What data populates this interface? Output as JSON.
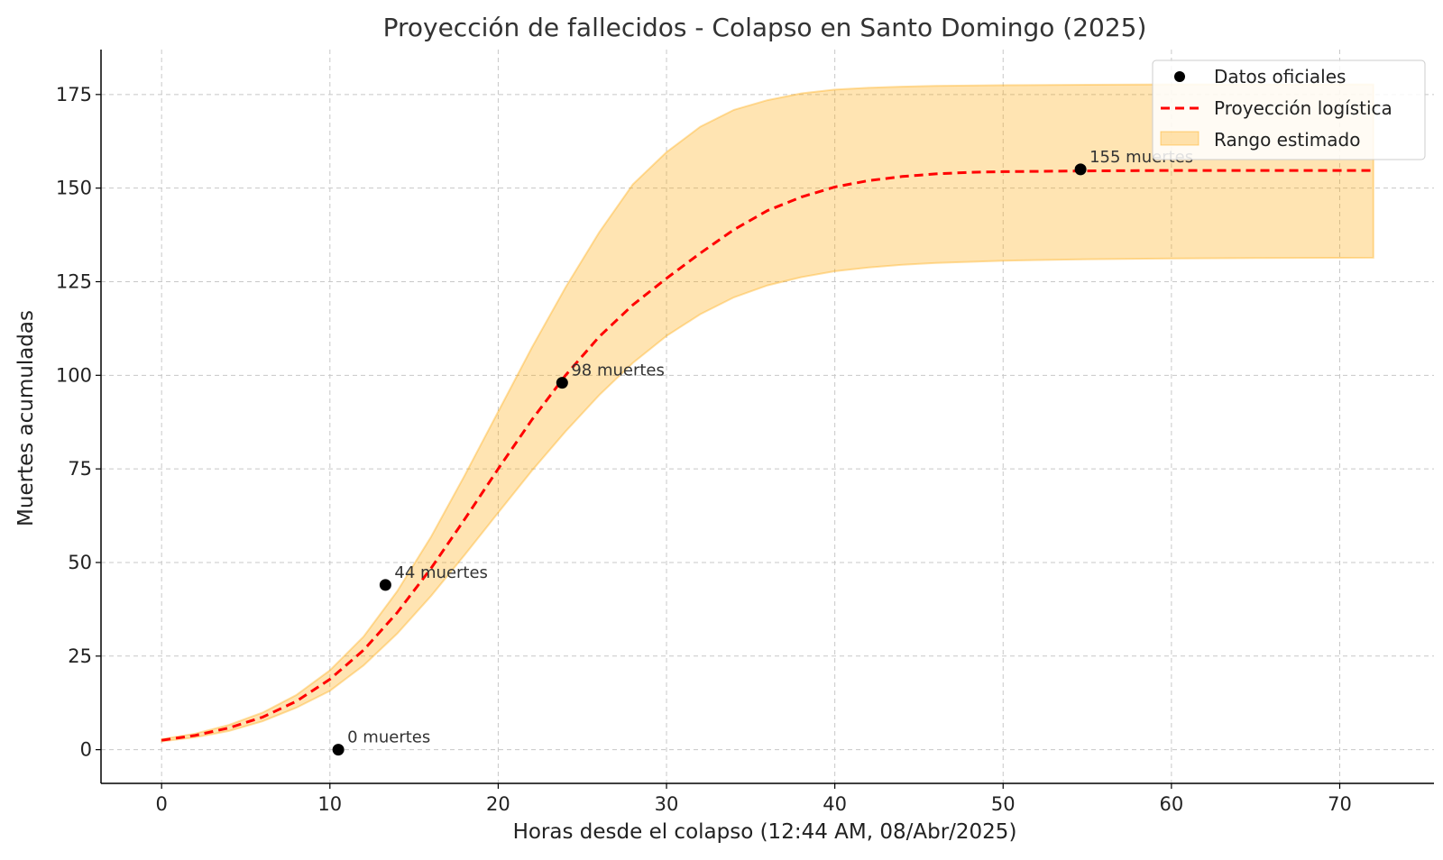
{
  "chart_data": {
    "type": "line",
    "title": "Proyección de fallecidos - Colapso en Santo Domingo (2025)",
    "xlabel": "Horas desde el colapso (12:44 AM, 08/Abr/2025)",
    "ylabel": "Muertes acumuladas",
    "xlim": [
      -3.6,
      75.6
    ],
    "ylim": [
      -9,
      187
    ],
    "xticks": [
      0,
      10,
      20,
      30,
      40,
      50,
      60,
      70
    ],
    "yticks": [
      0,
      25,
      50,
      75,
      100,
      125,
      150,
      175
    ],
    "grid": true,
    "legend_position": "top-right",
    "colors": {
      "points": "#000000",
      "line": "#ff0000",
      "band": "#ffa500"
    },
    "series": [
      {
        "name": "Datos oficiales",
        "kind": "scatter",
        "points": [
          {
            "x": 10.5,
            "y": 0
          },
          {
            "x": 13.3,
            "y": 44
          },
          {
            "x": 23.8,
            "y": 98
          },
          {
            "x": 54.6,
            "y": 155
          }
        ]
      },
      {
        "name": "Proyección logística",
        "kind": "line",
        "style": "dashed",
        "x": [
          0,
          2,
          4,
          6,
          8,
          10,
          12,
          14,
          16,
          18,
          20,
          22,
          24,
          26,
          28,
          30,
          32,
          34,
          36,
          38,
          40,
          42,
          44,
          46,
          48,
          50,
          55,
          60,
          65,
          72
        ],
        "y": [
          2.5,
          3.8,
          5.8,
          8.7,
          12.9,
          18.8,
          26.6,
          36.6,
          48.4,
          61.5,
          75,
          88.1,
          100,
          110.3,
          118.8,
          125.9,
          132.6,
          138.9,
          144,
          147.6,
          150.3,
          152,
          153.1,
          153.8,
          154.2,
          154.4,
          154.6,
          154.7,
          154.7,
          154.7
        ]
      },
      {
        "name": "Rango estimado",
        "kind": "band",
        "x": [
          0,
          2,
          4,
          6,
          8,
          10,
          12,
          14,
          16,
          18,
          20,
          22,
          24,
          26,
          28,
          30,
          32,
          34,
          36,
          38,
          40,
          42,
          44,
          46,
          48,
          50,
          55,
          60,
          65,
          72
        ],
        "lower": [
          2.2,
          3.3,
          5,
          7.6,
          11.2,
          15.7,
          22.5,
          31,
          41,
          52,
          63.3,
          74.5,
          85,
          94.7,
          103.3,
          110.5,
          116.3,
          120.8,
          124,
          126.2,
          127.8,
          128.8,
          129.5,
          130,
          130.3,
          130.6,
          131,
          131.2,
          131.3,
          131.4
        ],
        "upper": [
          2.8,
          4.3,
          6.6,
          9.9,
          14.6,
          21.2,
          30.2,
          42.3,
          56.8,
          73.2,
          90.3,
          107.4,
          123.5,
          138.2,
          151,
          159.6,
          166.4,
          170.9,
          173.5,
          175.3,
          176.3,
          176.8,
          177.1,
          177.3,
          177.4,
          177.5,
          177.6,
          177.7,
          177.7,
          177.7
        ]
      }
    ],
    "annotations": [
      {
        "x": 10.5,
        "y": 0,
        "text": "0 muertes"
      },
      {
        "x": 13.3,
        "y": 44,
        "text": "44 muertes"
      },
      {
        "x": 23.8,
        "y": 98,
        "text": "98 muertes"
      },
      {
        "x": 54.6,
        "y": 155,
        "text": "155 muertes"
      }
    ]
  }
}
